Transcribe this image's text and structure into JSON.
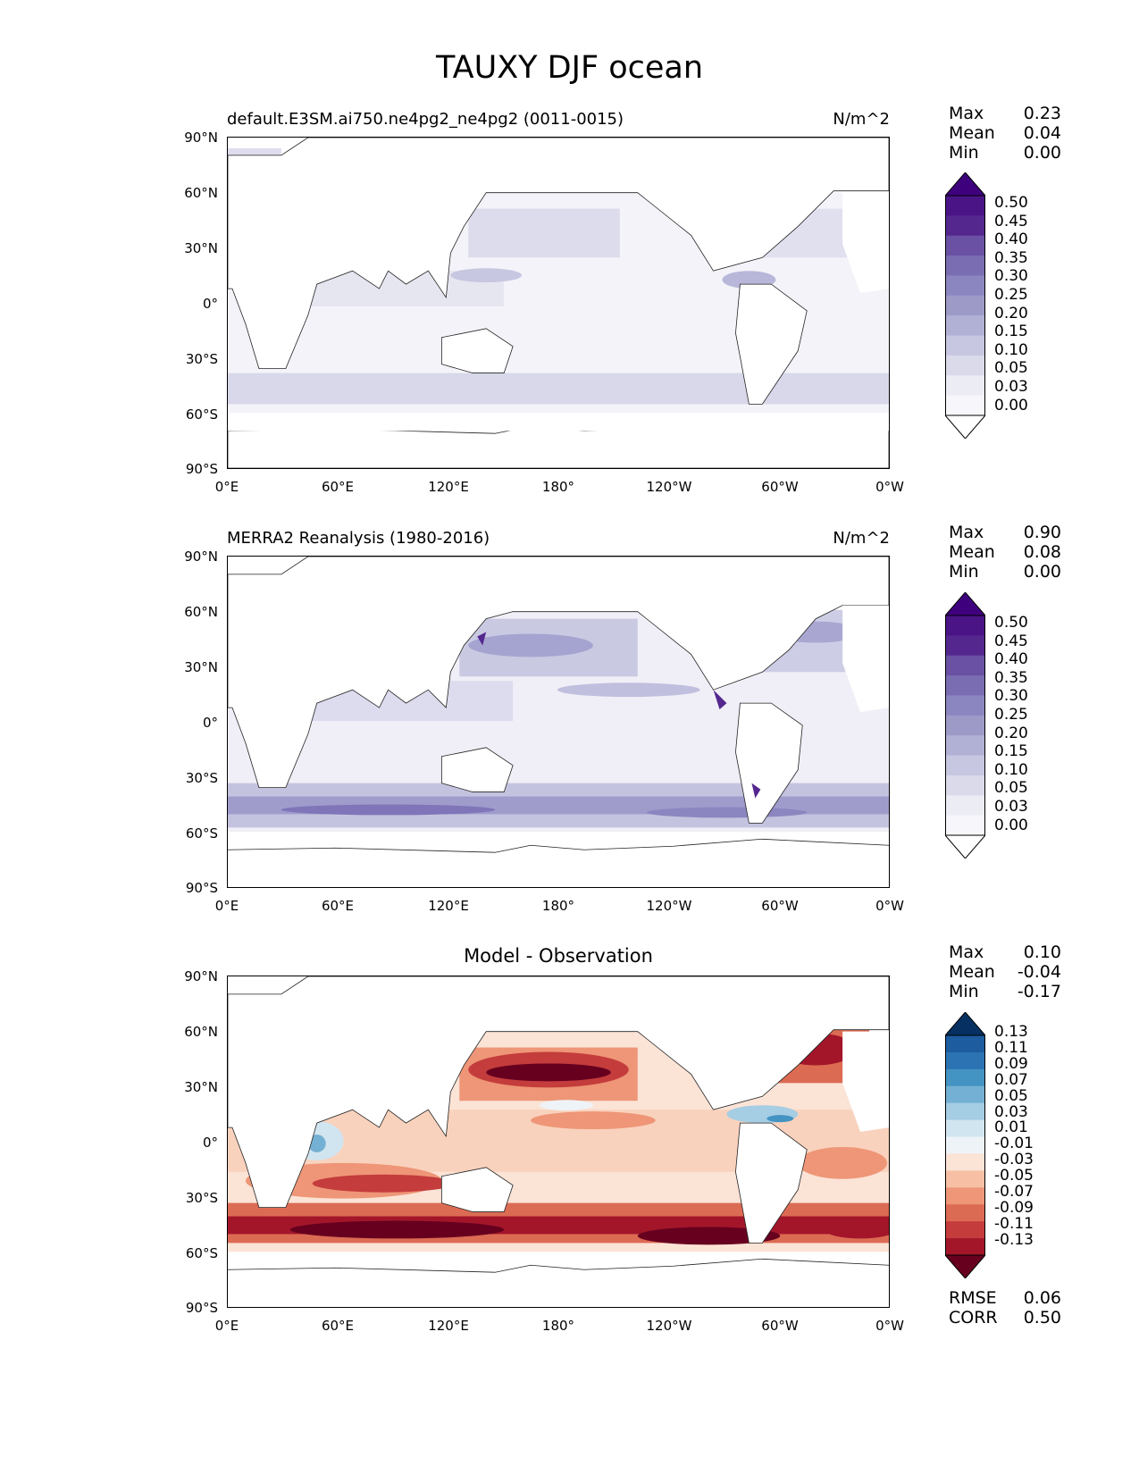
{
  "figure_title": "TAUXY DJF ocean",
  "panels": [
    {
      "left_title": "default.E3SM.ai750.ne4pg2_ne4pg2 (0011-0015)",
      "right_title": "N/m^2",
      "center_title": "",
      "stats": [
        {
          "name": "Max",
          "value": "0.23"
        },
        {
          "name": "Mean",
          "value": "0.04"
        },
        {
          "name": "Min",
          "value": "0.00"
        }
      ],
      "colorbar": {
        "cmap": "Purples",
        "levels": [
          "0.50",
          "0.45",
          "0.40",
          "0.35",
          "0.30",
          "0.25",
          "0.20",
          "0.15",
          "0.10",
          "0.05",
          "0.03",
          "0.00"
        ],
        "colors": [
          "#3f007d",
          "#4a1486",
          "#54278f",
          "#6a51a3",
          "#7a6db2",
          "#8c86c0",
          "#9e9ac8",
          "#b1b0d5",
          "#c7c7e1",
          "#dadaeb",
          "#ececf4",
          "#f7f6fa",
          "#ffffff"
        ]
      }
    },
    {
      "left_title": "MERRA2 Reanalysis (1980-2016)",
      "right_title": "N/m^2",
      "center_title": "",
      "stats": [
        {
          "name": "Max",
          "value": "0.90"
        },
        {
          "name": "Mean",
          "value": "0.08"
        },
        {
          "name": "Min",
          "value": "0.00"
        }
      ],
      "colorbar": {
        "cmap": "Purples",
        "levels": [
          "0.50",
          "0.45",
          "0.40",
          "0.35",
          "0.30",
          "0.25",
          "0.20",
          "0.15",
          "0.10",
          "0.05",
          "0.03",
          "0.00"
        ],
        "colors": [
          "#3f007d",
          "#4a1486",
          "#54278f",
          "#6a51a3",
          "#7a6db2",
          "#8c86c0",
          "#9e9ac8",
          "#b1b0d5",
          "#c7c7e1",
          "#dadaeb",
          "#ececf4",
          "#f7f6fa",
          "#ffffff"
        ]
      }
    },
    {
      "left_title": "",
      "right_title": "",
      "center_title": "Model - Observation",
      "stats": [
        {
          "name": "Max",
          "value": "0.10"
        },
        {
          "name": "Mean",
          "value": "-0.04"
        },
        {
          "name": "Min",
          "value": "-0.17"
        }
      ],
      "bottom_stats": [
        {
          "name": "RMSE",
          "value": "0.06"
        },
        {
          "name": "CORR",
          "value": "0.50"
        }
      ],
      "colorbar": {
        "cmap": "RdBu",
        "levels": [
          "0.13",
          "0.11",
          "0.09",
          "0.07",
          "0.05",
          "0.03",
          "0.01",
          "-0.01",
          "-0.03",
          "-0.05",
          "-0.07",
          "-0.09",
          "-0.11",
          "-0.13"
        ],
        "colors": [
          "#053061",
          "#1c5c9f",
          "#2b73b3",
          "#4393c3",
          "#74b0d3",
          "#a5cde3",
          "#d1e5f0",
          "#eef3f7",
          "#fbe3d6",
          "#f7c0a4",
          "#ee9677",
          "#dc6b53",
          "#c43c3c",
          "#a3162a",
          "#67001f"
        ]
      }
    }
  ],
  "axes": {
    "y_ticks": [
      "90°N",
      "60°N",
      "30°N",
      "0°",
      "30°S",
      "60°S",
      "90°S"
    ],
    "x_ticks": [
      "0°E",
      "60°E",
      "120°E",
      "180°",
      "120°W",
      "60°W",
      "0°W"
    ]
  },
  "chart_data": [
    {
      "type": "heatmap",
      "title": "default.E3SM.ai750.ne4pg2_ne4pg2 (0011-0015)",
      "units": "N/m^2",
      "x_range": [
        0,
        360
      ],
      "y_range": [
        -90,
        90
      ],
      "xticks": [
        "0°E",
        "60°E",
        "120°E",
        "180°",
        "120°W",
        "60°W",
        "0°W"
      ],
      "yticks": [
        "90°N",
        "60°N",
        "30°N",
        "0°",
        "30°S",
        "60°S",
        "90°S"
      ],
      "stats": {
        "max": 0.23,
        "mean": 0.04,
        "min": 0.0
      },
      "bands": [
        {
          "lat": [
            50,
            60
          ],
          "value": 0.06
        },
        {
          "lat": [
            20,
            50
          ],
          "value": 0.08
        },
        {
          "lat": [
            -10,
            20
          ],
          "value": 0.05
        },
        {
          "lat": [
            -40,
            -10
          ],
          "value": 0.05
        },
        {
          "lat": [
            -60,
            -40
          ],
          "value": 0.1
        }
      ]
    },
    {
      "type": "heatmap",
      "title": "MERRA2 Reanalysis (1980-2016)",
      "units": "N/m^2",
      "x_range": [
        0,
        360
      ],
      "y_range": [
        -90,
        90
      ],
      "xticks": [
        "0°E",
        "60°E",
        "120°E",
        "180°",
        "120°W",
        "60°W",
        "0°W"
      ],
      "yticks": [
        "90°N",
        "60°N",
        "30°N",
        "0°",
        "30°S",
        "60°S",
        "90°S"
      ],
      "stats": {
        "max": 0.9,
        "mean": 0.08,
        "min": 0.0
      },
      "bands": [
        {
          "lat": [
            50,
            60
          ],
          "value": 0.14
        },
        {
          "lat": [
            20,
            50
          ],
          "value": 0.16
        },
        {
          "lat": [
            -10,
            20
          ],
          "value": 0.09
        },
        {
          "lat": [
            -40,
            -10
          ],
          "value": 0.08
        },
        {
          "lat": [
            -60,
            -40
          ],
          "value": 0.22
        }
      ]
    },
    {
      "type": "heatmap",
      "title": "Model - Observation",
      "x_range": [
        0,
        360
      ],
      "y_range": [
        -90,
        90
      ],
      "xticks": [
        "0°E",
        "60°E",
        "120°E",
        "180°",
        "120°W",
        "60°W",
        "0°W"
      ],
      "yticks": [
        "90°N",
        "60°N",
        "30°N",
        "0°",
        "30°S",
        "60°S",
        "90°S"
      ],
      "stats": {
        "max": 0.1,
        "mean": -0.04,
        "min": -0.17,
        "rmse": 0.06,
        "corr": 0.5
      },
      "bands": [
        {
          "lat": [
            50,
            60
          ],
          "value": -0.08
        },
        {
          "lat": [
            20,
            50
          ],
          "value": -0.08
        },
        {
          "lat": [
            -10,
            20
          ],
          "value": -0.03
        },
        {
          "lat": [
            -40,
            -10
          ],
          "value": -0.04
        },
        {
          "lat": [
            -60,
            -40
          ],
          "value": -0.12
        }
      ]
    }
  ]
}
